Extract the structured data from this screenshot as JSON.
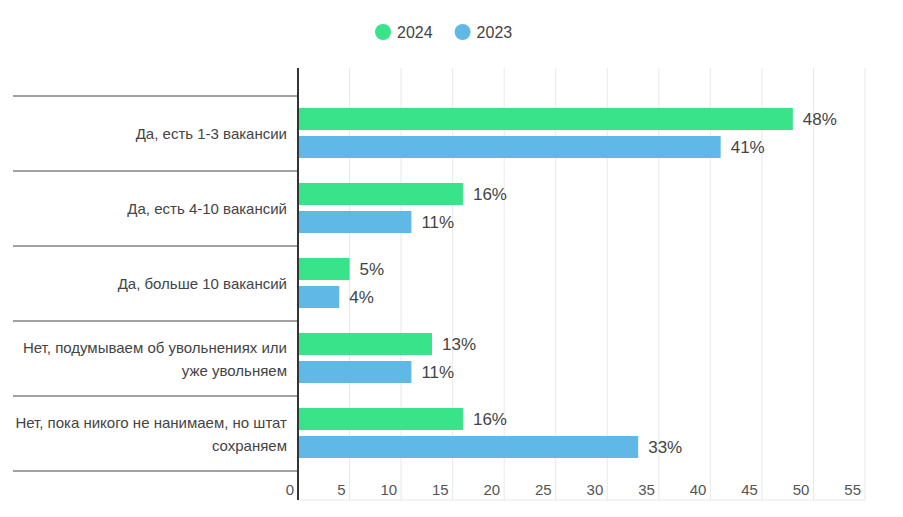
{
  "chart_data": {
    "type": "bar",
    "orientation": "horizontal",
    "categories": [
      "Да, есть 1-3 вакансии",
      "Да, есть 4-10 вакансий",
      "Да, больше 10 вакансий",
      "Нет, подумываем об увольнениях или уже увольняем",
      "Нет, пока никого не нанимаем, но штат сохраняем"
    ],
    "series": [
      {
        "name": "2024",
        "color": "#38e38a",
        "values": [
          48,
          16,
          5,
          13,
          16
        ],
        "value_labels": [
          "48%",
          "16%",
          "5%",
          "13%",
          "16%"
        ]
      },
      {
        "name": "2023",
        "color": "#60b8e6",
        "values": [
          41,
          11,
          4,
          11,
          33
        ],
        "value_labels": [
          "41%",
          "11%",
          "4%",
          "11%",
          "33%"
        ]
      }
    ],
    "xlim": [
      0,
      55
    ],
    "xticks": [
      0,
      5,
      10,
      15,
      20,
      25,
      30,
      35,
      40,
      45,
      50,
      55
    ],
    "grid": true,
    "legend": "top",
    "data_labels": true
  }
}
